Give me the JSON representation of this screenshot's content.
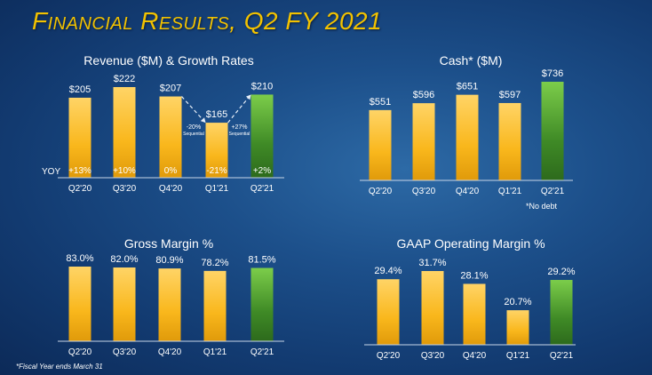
{
  "slide": {
    "title": "Financial Results, Q2 FY 2021",
    "footnote": "*Fiscal Year ends March 31"
  },
  "colors": {
    "bar": "#f5b921",
    "highlight": "#4f9a2c",
    "title": "#f2c200",
    "text": "#ffffff"
  },
  "chart_data": [
    {
      "type": "bar",
      "title": "Revenue ($M) & Growth Rates",
      "categories": [
        "Q2'20",
        "Q3'20",
        "Q4'20",
        "Q1'21",
        "Q2'21"
      ],
      "values": [
        205,
        222,
        207,
        165,
        210
      ],
      "data_labels": [
        "$205",
        "$222",
        "$207",
        "$165",
        "$210"
      ],
      "highlight_index": 4,
      "ylim": [
        77,
        230
      ],
      "yoy_label": "YOY",
      "yoy": [
        "+13%",
        "+10%",
        "0%",
        "-21%",
        "+2%"
      ],
      "annotations": [
        {
          "from": 2,
          "to": 3,
          "text": "-20%",
          "subtext": "Sequential"
        },
        {
          "from": 3,
          "to": 4,
          "text": "+27%",
          "subtext": "Sequential"
        }
      ]
    },
    {
      "type": "bar",
      "title": "Cash* ($M)",
      "categories": [
        "Q2'20",
        "Q3'20",
        "Q4'20",
        "Q1'21",
        "Q2'21"
      ],
      "values": [
        551,
        596,
        651,
        597,
        736
      ],
      "data_labels": [
        "$551",
        "$596",
        "$651",
        "$597",
        "$736"
      ],
      "highlight_index": 4,
      "ylim": [
        92,
        760
      ],
      "note": "*No debt"
    },
    {
      "type": "bar",
      "title": "Gross Margin %",
      "categories": [
        "Q2'20",
        "Q3'20",
        "Q4'20",
        "Q1'21",
        "Q2'21"
      ],
      "values": [
        83.0,
        82.0,
        80.9,
        78.2,
        81.5
      ],
      "data_labels": [
        "83.0%",
        "82.0%",
        "80.9%",
        "78.2%",
        "81.5%"
      ],
      "highlight_index": 4,
      "ylim": [
        0,
        100
      ]
    },
    {
      "type": "bar",
      "title": "GAAP Operating Margin %",
      "categories": [
        "Q2'20",
        "Q3'20",
        "Q4'20",
        "Q1'21",
        "Q2'21"
      ],
      "values": [
        29.4,
        31.7,
        28.1,
        20.7,
        29.2
      ],
      "data_labels": [
        "29.4%",
        "31.7%",
        "28.1%",
        "20.7%",
        "29.2%"
      ],
      "highlight_index": 4,
      "ylim": [
        11,
        33
      ]
    }
  ]
}
